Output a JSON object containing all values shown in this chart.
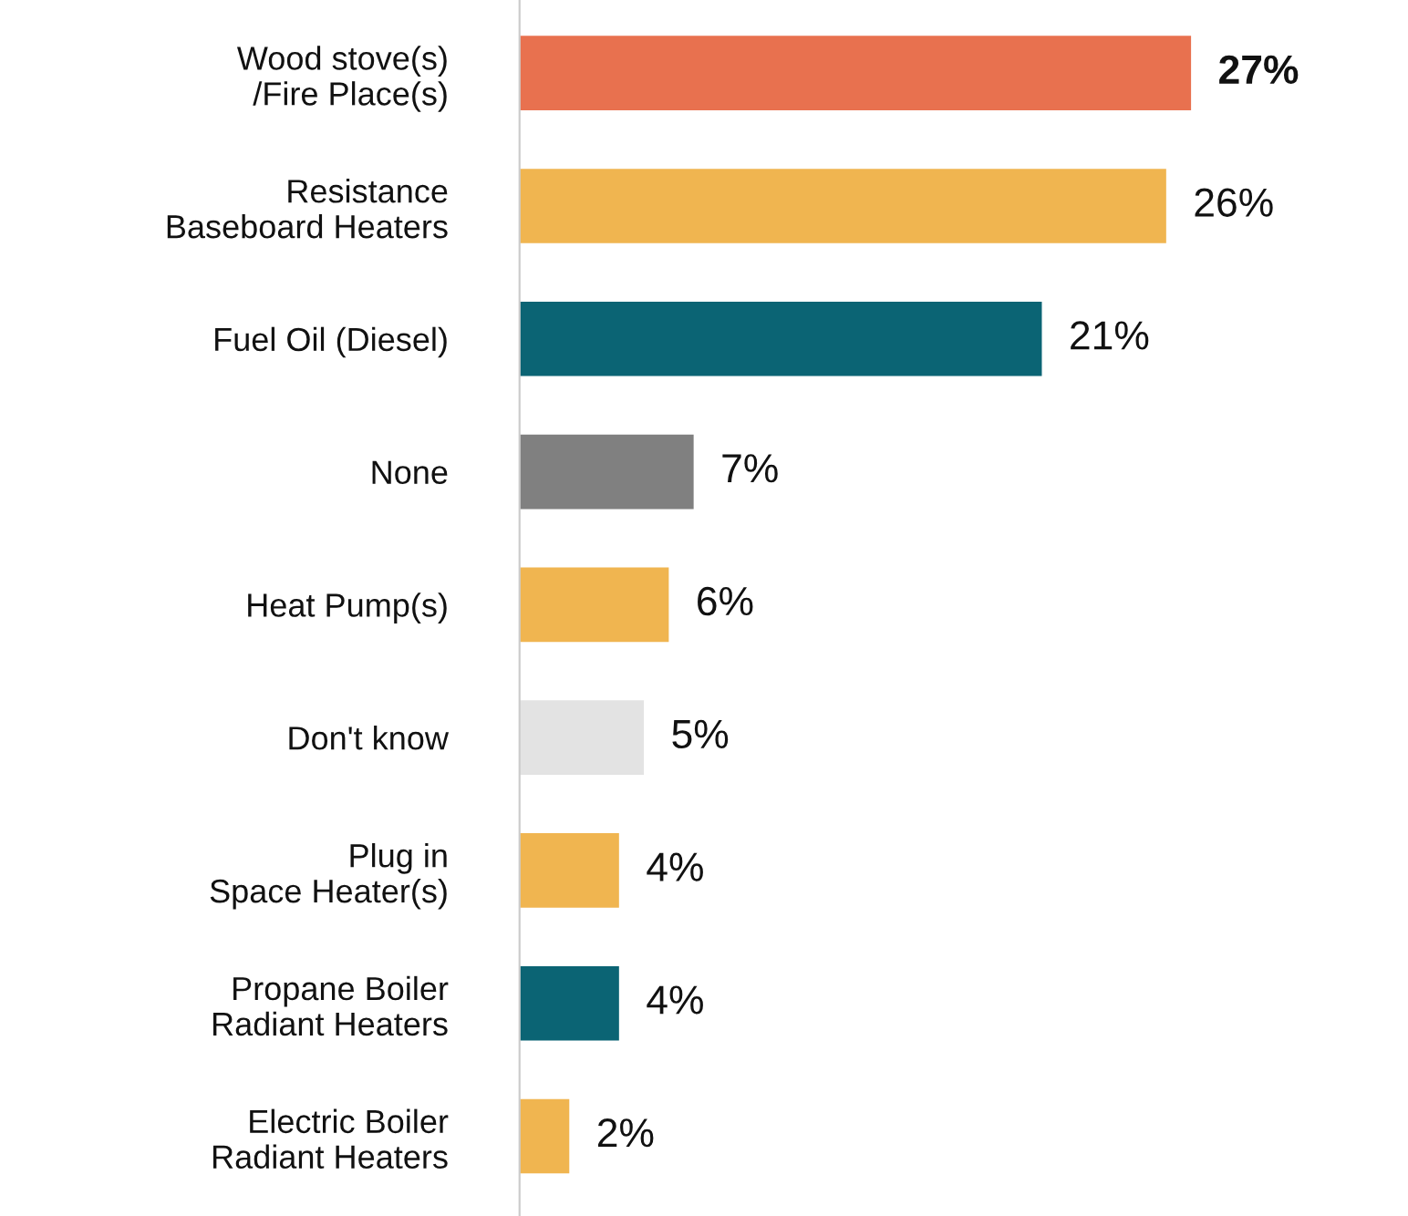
{
  "chart_data": {
    "type": "bar",
    "orientation": "horizontal",
    "categories": [
      "Wood stove(s)\n/Fire Place(s)",
      "Resistance\nBaseboard Heaters",
      "Fuel Oil (Diesel)",
      "None",
      "Heat Pump(s)",
      "Don't know",
      "Plug in\nSpace Heater(s)",
      "Propane Boiler\nRadiant Heaters",
      "Electric Boiler\nRadiant Heaters"
    ],
    "values": [
      27,
      26,
      21,
      7,
      6,
      5,
      4,
      4,
      2
    ],
    "colors": [
      "#e8714f",
      "#f0b550",
      "#0b6474",
      "#808080",
      "#f0b550",
      "#e3e3e3",
      "#f0b550",
      "#0b6474",
      "#f0b550"
    ],
    "value_labels": [
      "27%",
      "26%",
      "21%",
      "7%",
      "6%",
      "5%",
      "4%",
      "4%",
      "2%"
    ],
    "grid": false,
    "legend": false
  }
}
